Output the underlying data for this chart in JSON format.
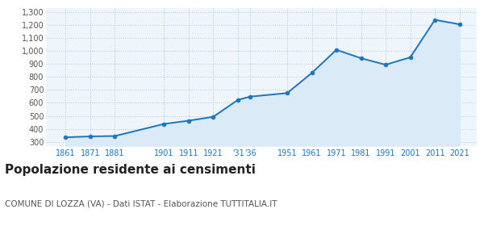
{
  "years": [
    1861,
    1871,
    1881,
    1901,
    1911,
    1921,
    1931,
    1936,
    1951,
    1961,
    1971,
    1981,
    1991,
    2001,
    2011,
    2021
  ],
  "population": [
    335,
    342,
    345,
    438,
    463,
    493,
    623,
    648,
    675,
    830,
    1008,
    943,
    893,
    950,
    1238,
    1204
  ],
  "ylim": [
    270,
    1330
  ],
  "yticks": [
    300,
    400,
    500,
    600,
    700,
    800,
    900,
    1000,
    1100,
    1200,
    1300
  ],
  "line_color": "#1c75bc",
  "fill_color": "#daeaf7",
  "marker_color": "#1c75bc",
  "bg_color": "#eef5fb",
  "grid_color": "#b0c8df",
  "title": "Popolazione residente ai censimenti",
  "subtitle": "COMUNE DI LOZZA (VA) - Dati ISTAT - Elaborazione TUTTITALIA.IT",
  "title_fontsize": 11,
  "subtitle_fontsize": 7.5,
  "x_positions": [
    1861,
    1871,
    1881,
    1901,
    1911,
    1921,
    1931,
    1936,
    1951,
    1961,
    1971,
    1981,
    1991,
    2001,
    2011,
    2021
  ],
  "x_labels": [
    "1861",
    "1871",
    "1881",
    "1901",
    "1911",
    "1921",
    "'31",
    "'36",
    "1951",
    "1961",
    "1971",
    "1981",
    "1991",
    "2001",
    "2011",
    "2021"
  ],
  "xlim_left": 1853,
  "xlim_right": 2028
}
